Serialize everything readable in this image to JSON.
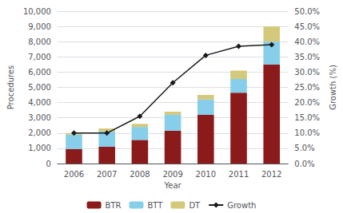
{
  "chart_data": {
    "type": "bar",
    "stacked": true,
    "grid": true,
    "legend": "bottom",
    "xlabel": "Year",
    "ylabel": "Procedures",
    "y2label": "Growth (%)",
    "categories": [
      "2006",
      "2007",
      "2008",
      "2009",
      "2010",
      "2011",
      "2012"
    ],
    "series": [
      {
        "name": "BTR",
        "color": "#8B1A1A",
        "values": [
          950,
          1100,
          1550,
          2150,
          3200,
          4650,
          6500
        ]
      },
      {
        "name": "BTT",
        "color": "#87CEEB",
        "values": [
          950,
          1000,
          850,
          1050,
          1000,
          900,
          1500
        ]
      },
      {
        "name": "DT",
        "color": "#D4C87A",
        "values": [
          100,
          200,
          200,
          200,
          300,
          550,
          1000
        ]
      },
      {
        "name": "Growth",
        "type": "line",
        "axis": "y2",
        "color": "#1a1a1a",
        "marker": "diamond",
        "values": [
          0.1,
          0.1,
          0.155,
          0.265,
          0.355,
          0.385,
          0.39
        ]
      }
    ],
    "ylim": [
      0,
      10000
    ],
    "yticks": [
      0,
      {
        "value": 1000,
        "label": "1,000"
      },
      {
        "value": 2000,
        "label": "2,000"
      },
      {
        "value": 3000,
        "label": "3,000"
      },
      {
        "value": 4000,
        "label": "4,000"
      },
      {
        "value": 5000,
        "label": "5,000"
      },
      {
        "value": 6000,
        "label": "6,000"
      },
      {
        "value": 7000,
        "label": "7,000"
      },
      {
        "value": 8000,
        "label": "8,000"
      },
      {
        "value": 9000,
        "label": "9,000"
      },
      {
        "value": 10000,
        "label": "10,000"
      }
    ],
    "y2lim": [
      0,
      0.5
    ],
    "y2ticks": [
      {
        "value": 0.0,
        "label": "0.0%"
      },
      {
        "value": 0.05,
        "label": "5.0%"
      },
      {
        "value": 0.1,
        "label": "10.0%"
      },
      {
        "value": 0.15,
        "label": "15.0%"
      },
      {
        "value": 0.2,
        "label": "20.0%"
      },
      {
        "value": 0.25,
        "label": "25.0%"
      },
      {
        "value": 0.3,
        "label": "30.0%"
      },
      {
        "value": 0.35,
        "label": "35.0%"
      },
      {
        "value": 0.4,
        "label": "40.0%"
      },
      {
        "value": 0.45,
        "label": "45.0%"
      },
      {
        "value": 0.5,
        "label": "50.0%"
      }
    ]
  }
}
